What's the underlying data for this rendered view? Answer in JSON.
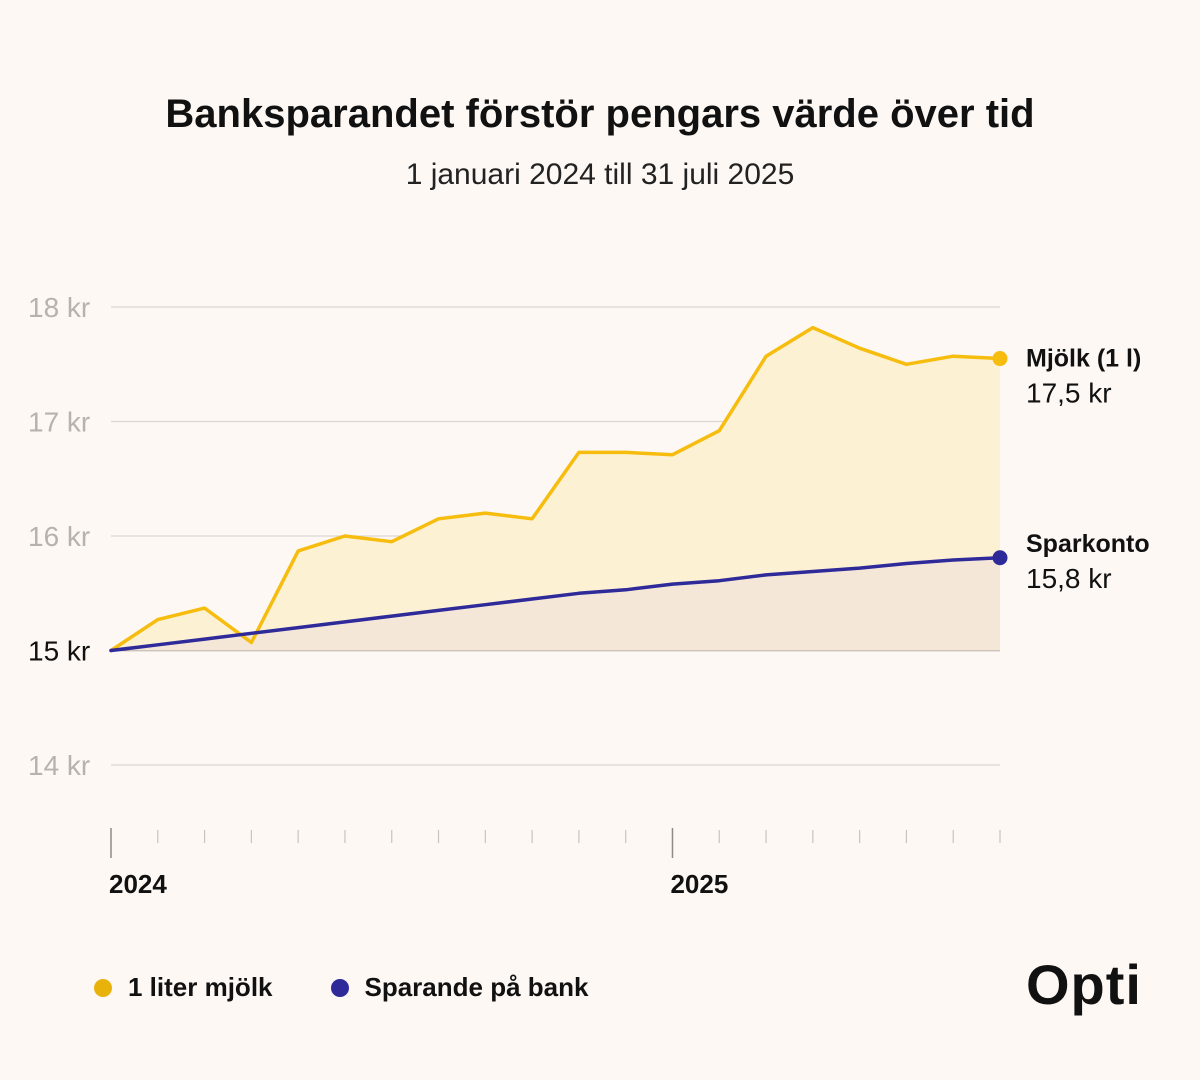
{
  "title": "Banksparandet förstör pengars värde över tid",
  "subtitle": "1 januari 2024 till 31 juli 2025",
  "brand": "Opti",
  "colors": {
    "background": "#fdf8f4",
    "milk": "#f6bd0f",
    "milk_fill": "#fdf1d4",
    "bank": "#2f2a9a",
    "bank_fill": "#f4e7d8",
    "grid": "#dcd6d0",
    "baseline": "#a9a29c"
  },
  "legend": [
    {
      "label": "1 liter mjölk",
      "color": "#f6bd0f"
    },
    {
      "label": "Sparande på bank",
      "color": "#2f2a9a"
    }
  ],
  "chart_data": {
    "type": "area",
    "x": [
      "2024-01",
      "2024-02",
      "2024-03",
      "2024-04",
      "2024-05",
      "2024-06",
      "2024-07",
      "2024-08",
      "2024-09",
      "2024-10",
      "2024-11",
      "2024-12",
      "2025-01",
      "2025-02",
      "2025-03",
      "2025-04",
      "2025-05",
      "2025-06",
      "2025-07",
      "2025-07-31"
    ],
    "x_tick_labels": [
      {
        "x": "2024-01",
        "label": "2024"
      },
      {
        "x": "2025-01",
        "label": "2025"
      }
    ],
    "y_tick_labels": [
      "14 kr",
      "15 kr",
      "16 kr",
      "17 kr",
      "18 kr"
    ],
    "y_ticks": [
      14,
      15,
      16,
      17,
      18
    ],
    "baseline_tick": 15,
    "ylim": [
      13.5,
      18.5
    ],
    "grid": true,
    "series": [
      {
        "name": "Mjölk (1 l)",
        "end_label": "17,5 kr",
        "values": [
          15.0,
          15.27,
          15.37,
          15.07,
          15.87,
          16.0,
          15.95,
          16.15,
          16.2,
          16.15,
          16.73,
          16.73,
          16.71,
          16.92,
          17.57,
          17.82,
          17.64,
          17.5,
          17.57,
          17.55
        ]
      },
      {
        "name": "Sparkonto",
        "end_label": "15,8 kr",
        "values": [
          15.0,
          15.05,
          15.1,
          15.15,
          15.2,
          15.25,
          15.3,
          15.35,
          15.4,
          15.45,
          15.5,
          15.53,
          15.58,
          15.61,
          15.66,
          15.69,
          15.72,
          15.76,
          15.79,
          15.81
        ]
      }
    ]
  }
}
